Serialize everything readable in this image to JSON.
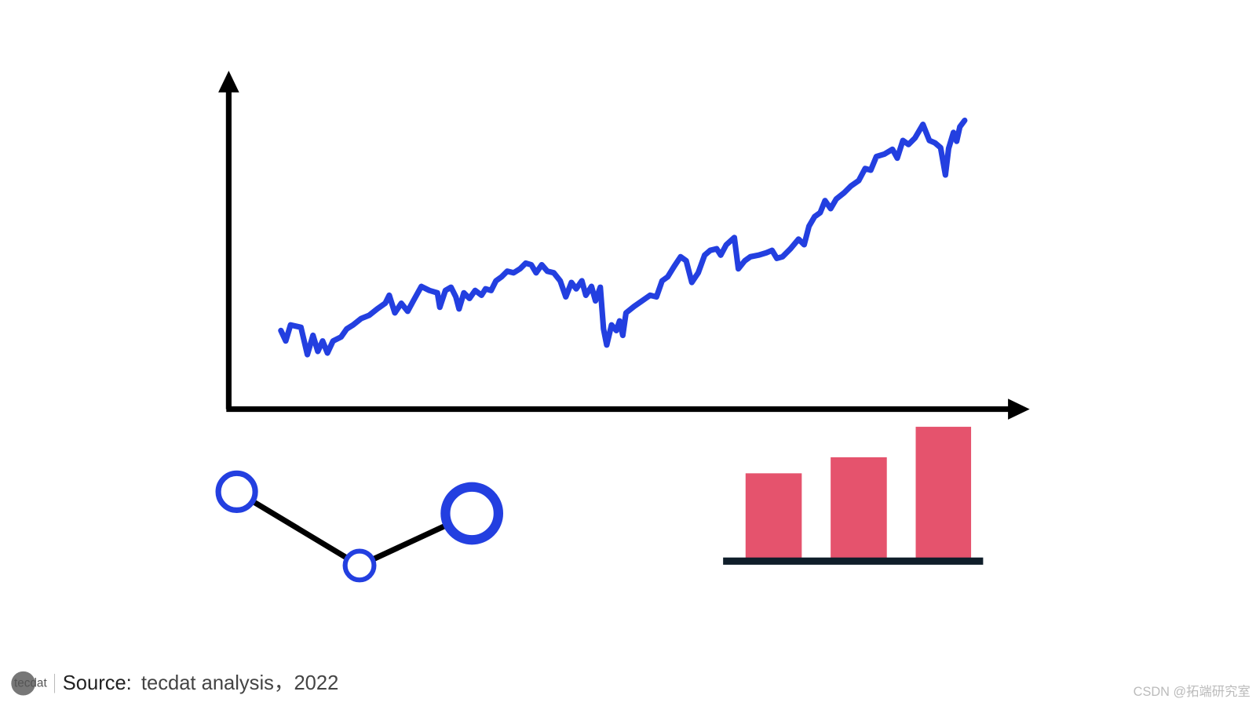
{
  "footer": {
    "logo": "tecdat",
    "source_label": "Source:",
    "source_text": "tecdat analysis，2022"
  },
  "watermark": "CSDN @拓端研究室"
}
